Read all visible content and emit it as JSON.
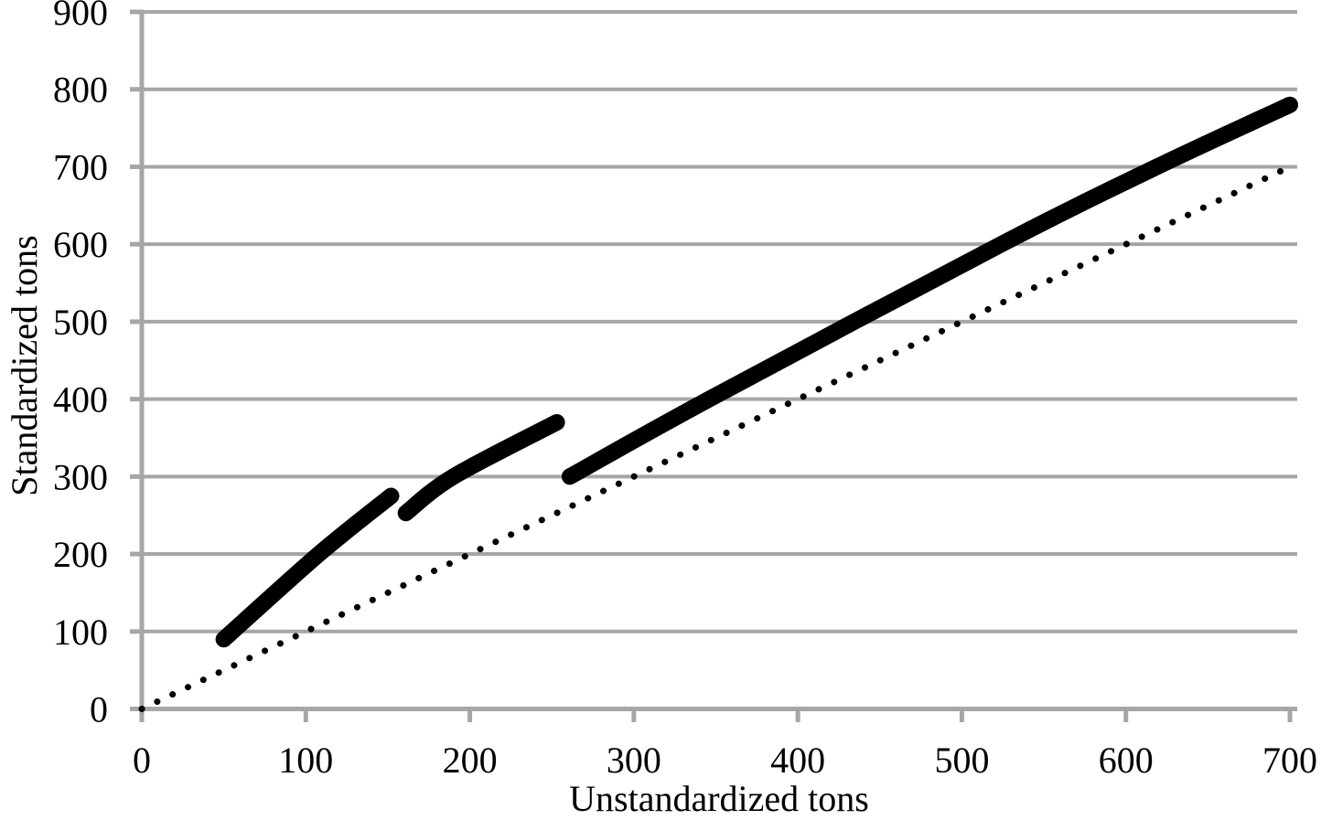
{
  "chart_data": {
    "type": "line",
    "title": "",
    "xlabel": "Unstandardized tons",
    "ylabel": "Standardized tons",
    "xlim": [
      0,
      705
    ],
    "ylim": [
      0,
      900
    ],
    "xticks": [
      0,
      100,
      200,
      300,
      400,
      500,
      600,
      700
    ],
    "yticks": [
      0,
      100,
      200,
      300,
      400,
      500,
      600,
      700,
      800,
      900
    ],
    "grid": "horizontal-only",
    "grid_color": "#A6A6A6",
    "axis_color": "#A6A6A6",
    "text_color": "#000000",
    "legend": "none",
    "series": [
      {
        "name": "standardized-tons-curve",
        "style": "solid-thick",
        "stroke_width": 18,
        "color": "#000000",
        "note": "three disjoint concave-down segments with downward jumps between them",
        "segments": [
          [
            [
              50,
              90
            ],
            [
              108,
              200
            ],
            [
              152,
              275
            ]
          ],
          [
            [
              161,
              253
            ],
            [
              190,
              300
            ],
            [
              253,
              370
            ]
          ],
          [
            [
              261,
              300
            ],
            [
              346,
              400
            ],
            [
              524,
              600
            ],
            [
              619,
              700
            ],
            [
              700,
              780
            ]
          ]
        ]
      },
      {
        "name": "identity-reference-line",
        "style": "dotted",
        "stroke_width": 7,
        "dot_spacing": 18.5,
        "color": "#000000",
        "note": "y = x reference line",
        "segments": [
          [
            [
              0,
              0
            ],
            [
              695,
              695
            ]
          ]
        ]
      }
    ]
  }
}
